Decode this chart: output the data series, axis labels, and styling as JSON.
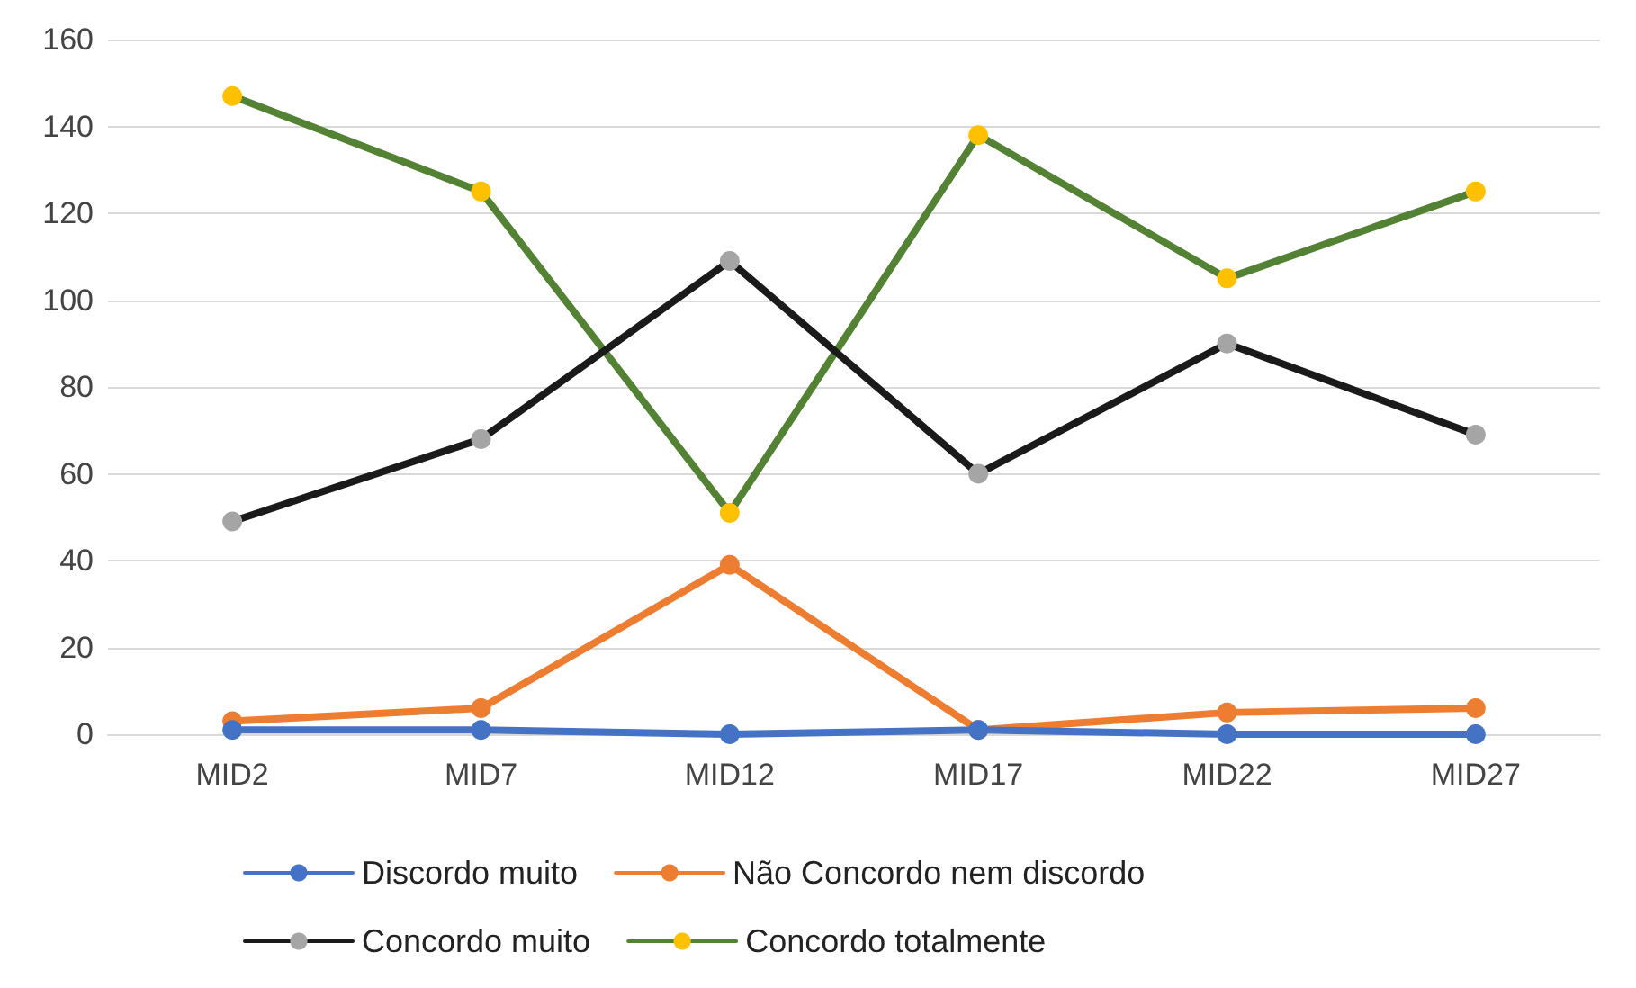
{
  "chart_data": {
    "type": "line",
    "categories": [
      "MID2",
      "MID7",
      "MID12",
      "MID17",
      "MID22",
      "MID27"
    ],
    "series": [
      {
        "name": "Discordo muito",
        "color": "#4472c4",
        "values": [
          1,
          1,
          0,
          1,
          0,
          0
        ]
      },
      {
        "name": "Não Concordo nem discordo",
        "color": "#ed7d31",
        "values": [
          3,
          6,
          39,
          1,
          5,
          6
        ]
      },
      {
        "name": "Concordo muito",
        "color": "#1a1a1a",
        "colors": [
          "#a5a5a5",
          "#a5a5a5",
          "#a5a5a5",
          "#a5a5a5",
          "#a5a5a5",
          "#a5a5a5"
        ],
        "values": [
          49,
          68,
          109,
          60,
          90,
          69
        ]
      },
      {
        "name": "Concordo totalmente",
        "color": "#548235",
        "colors": [
          "#ffc000",
          "#ffc000",
          "#ffc000",
          "#ffc000",
          "#ffc000",
          "#ffc000"
        ],
        "values": [
          147,
          125,
          51,
          138,
          105,
          125
        ]
      }
    ],
    "ylim": [
      0,
      160
    ],
    "yticks": [
      0,
      20,
      40,
      60,
      80,
      100,
      120,
      140,
      160
    ],
    "grid": "y",
    "legend": "bottom",
    "marker": "circle",
    "line_style": "solid"
  }
}
